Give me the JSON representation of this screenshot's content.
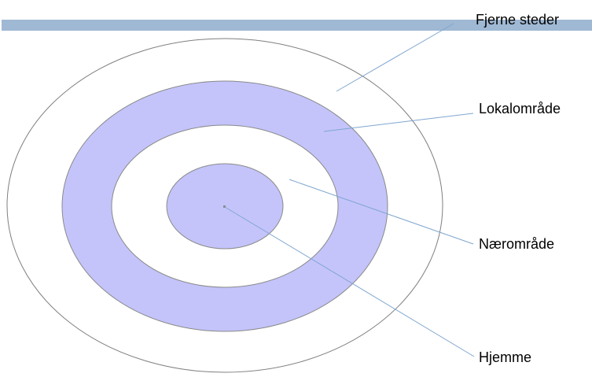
{
  "colors": {
    "ring_fill": "#c4c4fb",
    "ring_stroke": "#7f7f7f",
    "outer_stroke": "#7f7f7f",
    "leader_line": "#7fa6cf",
    "header_bar": "#9fb8d3",
    "background": "#ffffff"
  },
  "diagram": {
    "labels": {
      "far_places": "Fjerne steder",
      "local_area": "Lokalområde",
      "near_area": "Nærområde",
      "home": "Hjemme"
    }
  }
}
